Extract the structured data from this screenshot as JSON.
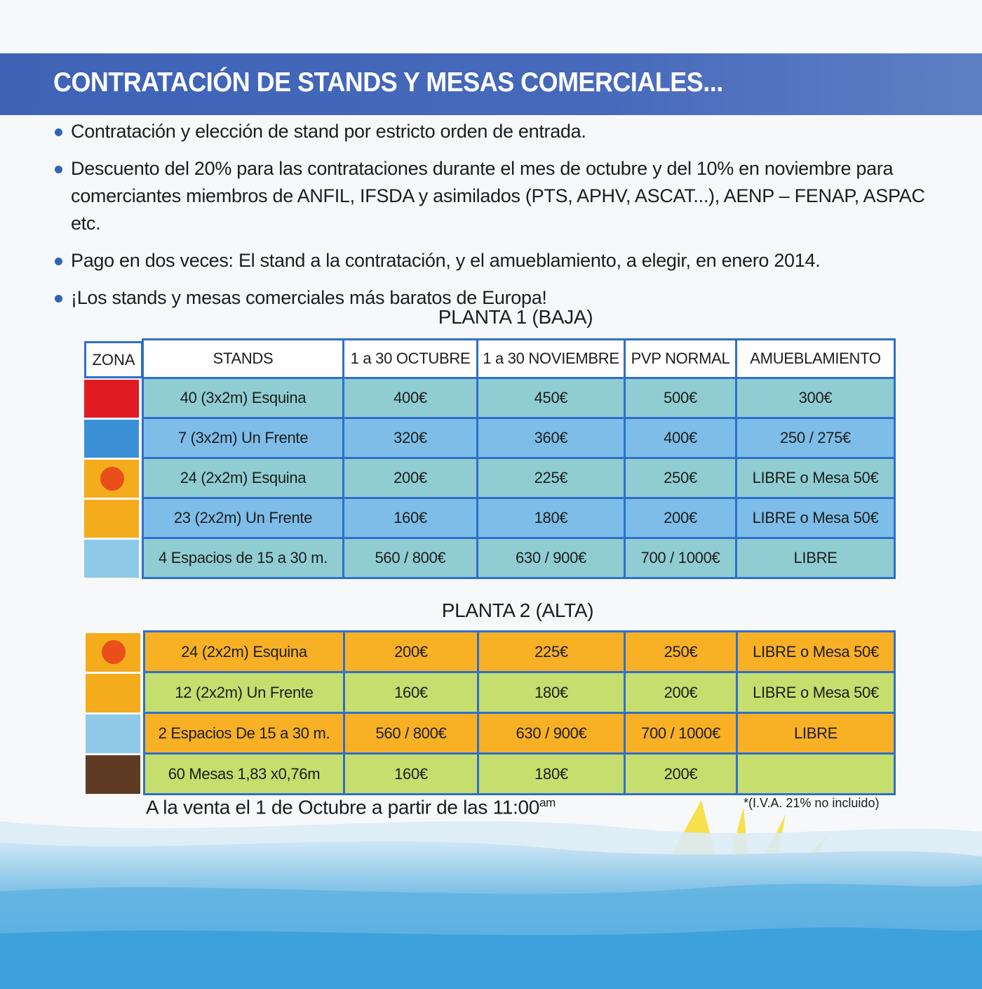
{
  "header": {
    "title": "CONTRATACIÓN DE STANDS Y MESAS COMERCIALES..."
  },
  "bullets": [
    "Contratación y elección de stand por estricto orden de entrada.",
    "Descuento del 20% para las contrataciones durante el mes de octubre y del 10% en noviembre para comerciantes miembros de ANFIL, IFSDA y asimilados (PTS, APHV, ASCAT...), AENP – FENAP, ASPAC etc.",
    "Pago en dos veces: El stand a la contratación, y el amueblamiento, a elegir, en enero 2014.",
    "¡Los stands y mesas comerciales más baratos de Europa!"
  ],
  "planta1": {
    "title": "PLANTA 1 (BAJA)",
    "headers": [
      "ZONA",
      "STANDS",
      "1 a 30 OCTUBRE",
      "1 a 30 NOVIEMBRE",
      "PVP NORMAL",
      "AMUEBLAMIENTO"
    ],
    "rows": [
      {
        "zone": "red",
        "cells": [
          "40 (3x2m) Esquina",
          "400€",
          "450€",
          "500€",
          "300€"
        ]
      },
      {
        "zone": "blue",
        "cells": [
          "7 (3x2m) Un Frente",
          "320€",
          "360€",
          "400€",
          "250 / 275€"
        ]
      },
      {
        "zone": "orange-dot",
        "cells": [
          "24 (2x2m) Esquina",
          "200€",
          "225€",
          "250€",
          "LIBRE o Mesa 50€"
        ]
      },
      {
        "zone": "orange",
        "cells": [
          "23 (2x2m) Un Frente",
          "160€",
          "180€",
          "200€",
          "LIBRE o Mesa 50€"
        ]
      },
      {
        "zone": "lightblue",
        "cells": [
          "4 Espacios de 15 a 30 m.",
          "560 / 800€",
          "630 / 900€",
          "700 / 1000€",
          "LIBRE"
        ]
      }
    ]
  },
  "planta2": {
    "title": "PLANTA 2 (ALTA)",
    "rows": [
      {
        "zone": "orange-dot",
        "cells": [
          "24 (2x2m) Esquina",
          "200€",
          "225€",
          "250€",
          "LIBRE o Mesa 50€"
        ]
      },
      {
        "zone": "orange",
        "cells": [
          "12 (2x2m) Un Frente",
          "160€",
          "180€",
          "200€",
          "LIBRE o Mesa 50€"
        ]
      },
      {
        "zone": "lightblue",
        "cells": [
          "2 Espacios De 15 a 30 m.",
          "560 / 800€",
          "630 / 900€",
          "700 / 1000€",
          "LIBRE"
        ]
      },
      {
        "zone": "brown",
        "cells": [
          "60 Mesas 1,83 x0,76m",
          "160€",
          "180€",
          "200€",
          ""
        ]
      }
    ]
  },
  "footer": {
    "sale_text": "A la venta el 1 de Octubre a partir de las 11:00",
    "sale_sup": "am",
    "vat_note": "*(I.V.A. 21% no incluido)"
  },
  "colors": {
    "banner": "#4669bb",
    "border": "#2f6fcc",
    "zone_red": "#e01b24",
    "zone_blue": "#3b8fd4",
    "zone_orange": "#f5ac1c",
    "zone_lightblue": "#8ec9e8",
    "zone_brown": "#5e3b22",
    "row_teal": "#8fcdd2",
    "row_blue": "#7dbde8",
    "row_orange": "#f8b025",
    "row_green": "#c5de6e",
    "dot": "#ea4e1b"
  }
}
